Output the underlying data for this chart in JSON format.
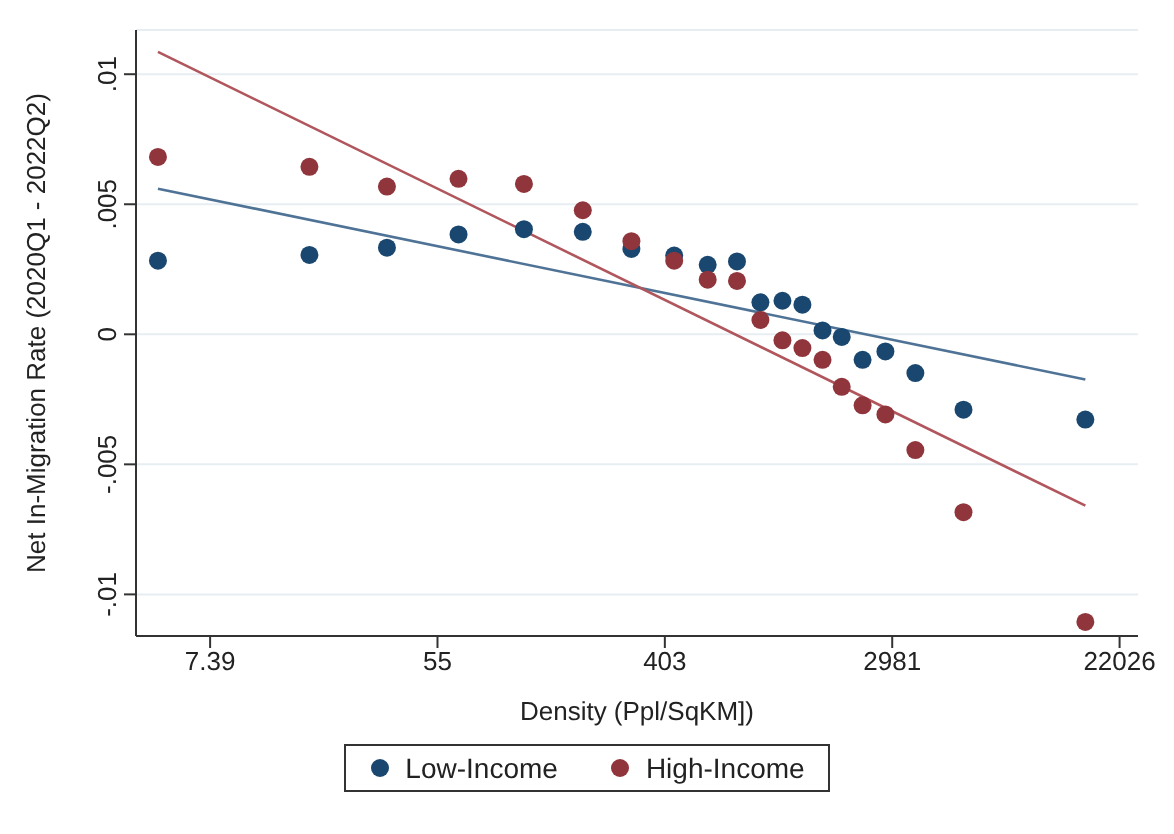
{
  "chart_data": {
    "type": "scatter",
    "xlabel": "Density (Ppl/SqKM])",
    "ylabel": "Net In-Migration Rate (2020Q1 - 2022Q2)",
    "log": "x",
    "xlim": [
      3.85,
      25900
    ],
    "xticks": [
      {
        "value": 7.389,
        "label": "7.39"
      },
      {
        "value": 54.6,
        "label": "55"
      },
      {
        "value": 403.4,
        "label": "403"
      },
      {
        "value": 2981,
        "label": "2981"
      },
      {
        "value": 22026,
        "label": "22026"
      }
    ],
    "ylim": [
      -0.0116,
      0.0117
    ],
    "yticks": [
      {
        "value": -0.01,
        "label": "-.01"
      },
      {
        "value": -0.005,
        "label": "-.005"
      },
      {
        "value": 0,
        "label": "0"
      },
      {
        "value": 0.005,
        "label": ".005"
      },
      {
        "value": 0.01,
        "label": ".01"
      }
    ],
    "grid": "y",
    "legend": "bottom",
    "marker": "circle",
    "series": [
      {
        "name": "Low-Income",
        "color": "#1a476f",
        "x": [
          4.67,
          17.7,
          35.0,
          65.7,
          116.8,
          196,
          300.6,
          438,
          588,
          761,
          935,
          1135,
          1353,
          1615,
          1912,
          2297,
          2808,
          3654,
          5580,
          16300
        ],
        "values": [
          0.00283,
          0.00305,
          0.00333,
          0.00384,
          0.00404,
          0.00394,
          0.00328,
          0.00303,
          0.00267,
          0.0028,
          0.00123,
          0.00129,
          0.00114,
          0.00015,
          -0.0001,
          -0.00098,
          -0.00066,
          -0.00149,
          -0.0029,
          -0.00328
        ]
      },
      {
        "name": "High-Income",
        "color": "#90353b",
        "x": [
          4.67,
          17.7,
          35.0,
          65.7,
          116.8,
          196,
          300.6,
          438,
          588,
          761,
          935,
          1135,
          1353,
          1615,
          1912,
          2297,
          2808,
          3654,
          5580,
          16300
        ],
        "values": [
          0.00682,
          0.00644,
          0.00568,
          0.00598,
          0.00578,
          0.00477,
          0.00358,
          0.00283,
          0.0021,
          0.00205,
          0.00055,
          -0.00023,
          -0.00053,
          -0.00098,
          -0.00202,
          -0.00273,
          -0.00308,
          -0.00445,
          -0.00684,
          -0.01106
        ]
      },
      {
        "type": "line",
        "marker": "none",
        "color": "#4f7396",
        "x": [
          4.67,
          16300
        ],
        "values": [
          0.0056,
          -0.00174
        ]
      },
      {
        "type": "line",
        "marker": "none",
        "color": "#b0565c",
        "x": [
          4.67,
          16300
        ],
        "values": [
          0.01086,
          -0.00659
        ]
      }
    ]
  }
}
